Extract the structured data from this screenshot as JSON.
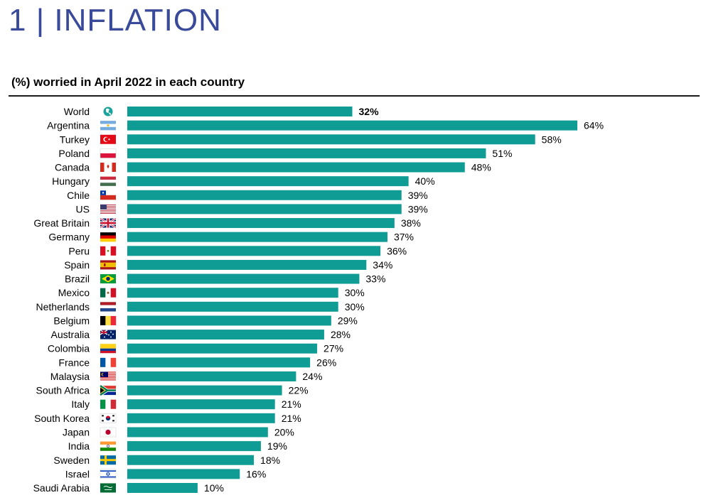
{
  "page_title": "1 | INFLATION",
  "chart_data": {
    "type": "bar",
    "orientation": "horizontal",
    "title": "(%) worried in April 2022 in each country",
    "categories": [
      "World",
      "Argentina",
      "Turkey",
      "Poland",
      "Canada",
      "Hungary",
      "Chile",
      "US",
      "Great Britain",
      "Germany",
      "Peru",
      "Spain",
      "Brazil",
      "Mexico",
      "Netherlands",
      "Belgium",
      "Australia",
      "Colombia",
      "France",
      "Malaysia",
      "South Africa",
      "Italy",
      "South Korea",
      "Japan",
      "India",
      "Sweden",
      "Israel",
      "Saudi Arabia"
    ],
    "values": [
      32,
      64,
      58,
      51,
      48,
      40,
      39,
      39,
      38,
      37,
      36,
      34,
      33,
      30,
      30,
      29,
      28,
      27,
      26,
      24,
      22,
      21,
      21,
      20,
      19,
      18,
      16,
      10
    ],
    "value_labels": [
      "32%",
      "64%",
      "58%",
      "51%",
      "48%",
      "40%",
      "39%",
      "39%",
      "38%",
      "37%",
      "36%",
      "34%",
      "33%",
      "30%",
      "30%",
      "29%",
      "28%",
      "27%",
      "26%",
      "24%",
      "22%",
      "21%",
      "21%",
      "20%",
      "19%",
      "18%",
      "16%",
      "10%"
    ],
    "highlight_category": "World",
    "bar_color": "#0e9c94",
    "xlim": [
      0,
      64
    ],
    "grid": false,
    "legend": "none",
    "flags": [
      "globe-icon",
      "argentina-flag",
      "turkey-flag",
      "poland-flag",
      "canada-flag",
      "hungary-flag",
      "chile-flag",
      "us-flag",
      "great-britain-flag",
      "germany-flag",
      "peru-flag",
      "spain-flag",
      "brazil-flag",
      "mexico-flag",
      "netherlands-flag",
      "belgium-flag",
      "australia-flag",
      "colombia-flag",
      "france-flag",
      "malaysia-flag",
      "south-africa-flag",
      "italy-flag",
      "south-korea-flag",
      "japan-flag",
      "india-flag",
      "sweden-flag",
      "israel-flag",
      "saudi-arabia-flag"
    ]
  }
}
